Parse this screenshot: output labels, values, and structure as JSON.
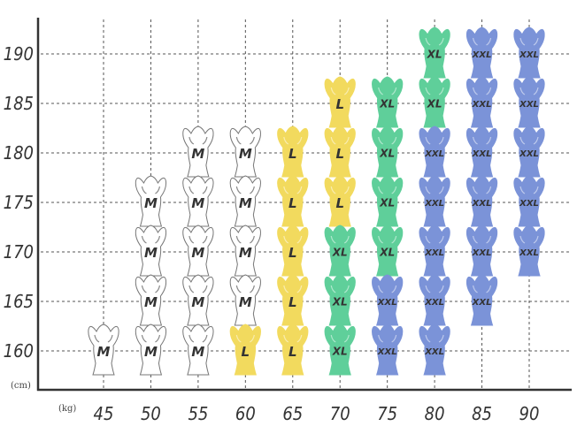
{
  "chart_data": {
    "type": "scatter",
    "x_unit": "(kg)",
    "y_unit": "(cm)",
    "x_ticks": [
      45,
      50,
      55,
      60,
      65,
      70,
      75,
      80,
      85,
      90
    ],
    "y_ticks": [
      190,
      185,
      180,
      175,
      170,
      165,
      160
    ],
    "xlim": [
      45,
      90
    ],
    "ylim": [
      160,
      190
    ],
    "grid": true,
    "size_colors": {
      "M": "#ffffff",
      "L": "#f2da5e",
      "XL": "#5fcf9a",
      "XXL": "#7b93d8"
    },
    "points": [
      {
        "kg": 80,
        "cm": 190,
        "size": "XL"
      },
      {
        "kg": 85,
        "cm": 190,
        "size": "XXL"
      },
      {
        "kg": 90,
        "cm": 190,
        "size": "XXL"
      },
      {
        "kg": 70,
        "cm": 185,
        "size": "L"
      },
      {
        "kg": 75,
        "cm": 185,
        "size": "XL"
      },
      {
        "kg": 80,
        "cm": 185,
        "size": "XL"
      },
      {
        "kg": 85,
        "cm": 185,
        "size": "XXL"
      },
      {
        "kg": 90,
        "cm": 185,
        "size": "XXL"
      },
      {
        "kg": 55,
        "cm": 180,
        "size": "M"
      },
      {
        "kg": 60,
        "cm": 180,
        "size": "M"
      },
      {
        "kg": 65,
        "cm": 180,
        "size": "L"
      },
      {
        "kg": 70,
        "cm": 180,
        "size": "L"
      },
      {
        "kg": 75,
        "cm": 180,
        "size": "XL"
      },
      {
        "kg": 80,
        "cm": 180,
        "size": "XXL"
      },
      {
        "kg": 85,
        "cm": 180,
        "size": "XXL"
      },
      {
        "kg": 90,
        "cm": 180,
        "size": "XXL"
      },
      {
        "kg": 50,
        "cm": 175,
        "size": "M"
      },
      {
        "kg": 55,
        "cm": 175,
        "size": "M"
      },
      {
        "kg": 60,
        "cm": 175,
        "size": "M"
      },
      {
        "kg": 65,
        "cm": 175,
        "size": "L"
      },
      {
        "kg": 70,
        "cm": 175,
        "size": "L"
      },
      {
        "kg": 75,
        "cm": 175,
        "size": "XL"
      },
      {
        "kg": 80,
        "cm": 175,
        "size": "XXL"
      },
      {
        "kg": 85,
        "cm": 175,
        "size": "XXL"
      },
      {
        "kg": 90,
        "cm": 175,
        "size": "XXL"
      },
      {
        "kg": 50,
        "cm": 170,
        "size": "M"
      },
      {
        "kg": 55,
        "cm": 170,
        "size": "M"
      },
      {
        "kg": 60,
        "cm": 170,
        "size": "M"
      },
      {
        "kg": 65,
        "cm": 170,
        "size": "L"
      },
      {
        "kg": 70,
        "cm": 170,
        "size": "XL"
      },
      {
        "kg": 75,
        "cm": 170,
        "size": "XL"
      },
      {
        "kg": 80,
        "cm": 170,
        "size": "XXL"
      },
      {
        "kg": 85,
        "cm": 170,
        "size": "XXL"
      },
      {
        "kg": 90,
        "cm": 170,
        "size": "XXL"
      },
      {
        "kg": 50,
        "cm": 165,
        "size": "M"
      },
      {
        "kg": 55,
        "cm": 165,
        "size": "M"
      },
      {
        "kg": 60,
        "cm": 165,
        "size": "M"
      },
      {
        "kg": 65,
        "cm": 165,
        "size": "L"
      },
      {
        "kg": 70,
        "cm": 165,
        "size": "XL"
      },
      {
        "kg": 75,
        "cm": 165,
        "size": "XXL"
      },
      {
        "kg": 80,
        "cm": 165,
        "size": "XXL"
      },
      {
        "kg": 85,
        "cm": 165,
        "size": "XXL"
      },
      {
        "kg": 45,
        "cm": 160,
        "size": "M"
      },
      {
        "kg": 50,
        "cm": 160,
        "size": "M"
      },
      {
        "kg": 55,
        "cm": 160,
        "size": "M"
      },
      {
        "kg": 60,
        "cm": 160,
        "size": "L"
      },
      {
        "kg": 65,
        "cm": 160,
        "size": "L"
      },
      {
        "kg": 70,
        "cm": 160,
        "size": "XL"
      },
      {
        "kg": 75,
        "cm": 160,
        "size": "XXL"
      },
      {
        "kg": 80,
        "cm": 160,
        "size": "XXL"
      }
    ]
  }
}
